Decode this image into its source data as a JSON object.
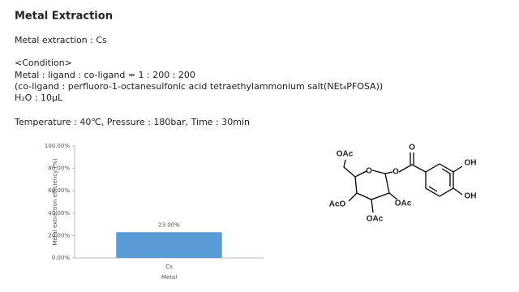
{
  "header": {
    "title": "Metal Extraction"
  },
  "body": {
    "lines": [
      "Metal extraction : Cs",
      "<Condition>",
      "Metal : ligand : co-ligand = 1 : 200 : 200",
      "(co-ligand : perfluoro-1-octanesulfonic acid tetraethylammonium salt(NEt₄PFOSA))",
      "H₂O : 10μL",
      "Temperature : 40℃, Pressure : 180bar, Time : 30min"
    ]
  },
  "chart_data": {
    "type": "bar",
    "x_label": "Metal",
    "y_label": "Metal extraction efficiency (%)",
    "categories": [
      "Cs"
    ],
    "values": [
      23
    ],
    "value_labels": [
      "23.00%"
    ],
    "color": "#5b9bd5",
    "ylim": [
      0,
      100
    ],
    "yticks": [
      {
        "value": 0,
        "label": "0.00%"
      },
      {
        "value": 20,
        "label": "20.00%"
      },
      {
        "value": 40,
        "label": "40.00%"
      },
      {
        "value": 60,
        "label": "60.00%"
      },
      {
        "value": 80,
        "label": "80.00%"
      },
      {
        "value": 100,
        "label": "100.00%"
      }
    ]
  },
  "structure": {
    "labels": [
      "OAc",
      "O",
      "O",
      "O",
      "OH",
      "OH",
      "AcO",
      "OAc",
      "OAc"
    ]
  }
}
